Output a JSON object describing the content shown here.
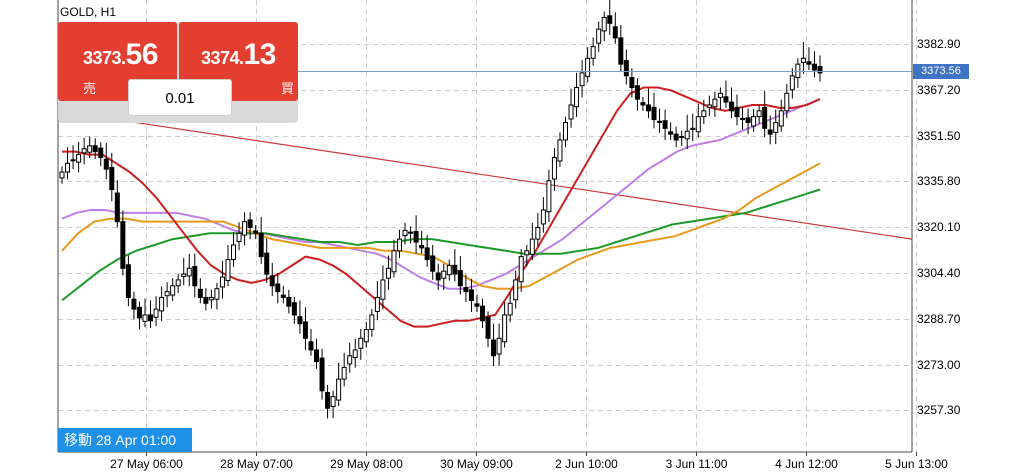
{
  "chart": {
    "symbol_timeframe": "GOLD, H1",
    "current_price_tag": "3373.56",
    "goto_label": "移動 28 Apr 01:00",
    "y_ticks": [
      "3382.90",
      "3367.20",
      "3351.50",
      "3335.80",
      "3320.10",
      "3304.40",
      "3288.70",
      "3273.00",
      "3257.30"
    ],
    "x_ticks": [
      "27 May 06:00",
      "28 May 07:00",
      "29 May 08:00",
      "30 May 09:00",
      "2 Jun 10:00",
      "3 Jun 11:00",
      "4 Jun 12:00",
      "5 Jun 13:00"
    ]
  },
  "trade": {
    "sell": {
      "price_small": "3373.",
      "price_big": "56",
      "label": "売"
    },
    "buy": {
      "price_small": "3374.",
      "price_big": "13",
      "label": "買"
    },
    "lot": "0.01"
  },
  "colors": {
    "candle": "#000000",
    "ma_fast": "#cc1f1f",
    "ma_mid": "#e69a1e",
    "ma_slow": "#1e9a2a",
    "ma_lilac": "#c17ee6",
    "trendline": "#cc3a3a",
    "price_line": "#7a9ccf",
    "button_red": "#e43e30",
    "tag_blue": "#3d74c4",
    "goto_blue": "#1e90e8"
  },
  "chart_data": {
    "type": "candlestick",
    "ylim": [
      3243,
      3398
    ],
    "closes": [
      3339,
      3342,
      3343,
      3345,
      3347,
      3348,
      3346,
      3344,
      3340,
      3333,
      3322,
      3306,
      3296,
      3292,
      3289,
      3290,
      3288,
      3292,
      3296,
      3298,
      3300,
      3302,
      3304,
      3306,
      3300,
      3296,
      3294,
      3296,
      3299,
      3303,
      3309,
      3314,
      3318,
      3322,
      3320,
      3318,
      3310,
      3304,
      3300,
      3298,
      3296,
      3293,
      3290,
      3287,
      3282,
      3278,
      3274,
      3264,
      3258,
      3262,
      3268,
      3272,
      3276,
      3278,
      3282,
      3285,
      3290,
      3296,
      3302,
      3306,
      3312,
      3316,
      3319,
      3318,
      3315,
      3313,
      3309,
      3305,
      3302,
      3305,
      3307,
      3304,
      3300,
      3298,
      3295,
      3293,
      3288,
      3282,
      3276,
      3282,
      3290,
      3294,
      3302,
      3310,
      3312,
      3316,
      3320,
      3326,
      3336,
      3344,
      3350,
      3356,
      3362,
      3368,
      3373,
      3378,
      3382,
      3388,
      3392,
      3390,
      3385,
      3376,
      3372,
      3368,
      3364,
      3362,
      3360,
      3357,
      3356,
      3354,
      3352,
      3350,
      3351,
      3353,
      3354,
      3358,
      3360,
      3362,
      3364,
      3366,
      3363,
      3360,
      3358,
      3357,
      3356,
      3358,
      3360,
      3354,
      3352,
      3356,
      3360,
      3366,
      3372,
      3376,
      3378,
      3376,
      3374,
      3373
    ],
    "ma_fast": [
      3346,
      3346,
      3345,
      3345,
      3342,
      3339,
      3335,
      3330,
      3324,
      3318,
      3312,
      3307,
      3304,
      3302,
      3301,
      3302,
      3304,
      3307,
      3310,
      3309,
      3307,
      3304,
      3300,
      3296,
      3292,
      3288,
      3286,
      3286,
      3287,
      3288,
      3288,
      3289,
      3290,
      3297,
      3305,
      3312,
      3320,
      3328,
      3336,
      3344,
      3352,
      3360,
      3366,
      3368,
      3368,
      3367,
      3365,
      3363,
      3361,
      3360,
      3361,
      3362,
      3362,
      3361,
      3361,
      3362,
      3364
    ],
    "ma_mid": [
      3312,
      3318,
      3322,
      3323,
      3323,
      3322,
      3322,
      3322,
      3322,
      3322,
      3322,
      3320,
      3318,
      3316,
      3315,
      3314,
      3313,
      3313,
      3313,
      3313,
      3312,
      3312,
      3311,
      3310,
      3307,
      3303,
      3300,
      3299,
      3299,
      3300,
      3303,
      3306,
      3309,
      3311,
      3313,
      3314,
      3315,
      3316,
      3317,
      3319,
      3321,
      3323,
      3326,
      3330,
      3333,
      3336,
      3339,
      3342
    ],
    "ma_slow": [
      3295,
      3300,
      3305,
      3309,
      3312,
      3314,
      3316,
      3317,
      3318,
      3318,
      3318,
      3318,
      3317,
      3316,
      3315,
      3315,
      3314,
      3315,
      3315,
      3316,
      3316,
      3315,
      3314,
      3313,
      3312,
      3311,
      3311,
      3311,
      3312,
      3313,
      3315,
      3317,
      3319,
      3321,
      3322,
      3323,
      3324,
      3325,
      3327,
      3329,
      3331,
      3333
    ],
    "ma_lilac": [
      3323,
      3325,
      3326,
      3326,
      3325,
      3325,
      3325,
      3325,
      3325,
      3324,
      3323,
      3321,
      3319,
      3318,
      3318,
      3317,
      3316,
      3315,
      3315,
      3314,
      3313,
      3312,
      3311,
      3309,
      3306,
      3303,
      3301,
      3299,
      3299,
      3300,
      3302,
      3304,
      3307,
      3310,
      3313,
      3316,
      3320,
      3324,
      3328,
      3332,
      3336,
      3340,
      3343,
      3346,
      3348,
      3349,
      3350,
      3352,
      3354,
      3356,
      3358,
      3360,
      3362,
      3364
    ],
    "trendline": [
      3360,
      3316
    ],
    "current_price": 3373.56
  }
}
